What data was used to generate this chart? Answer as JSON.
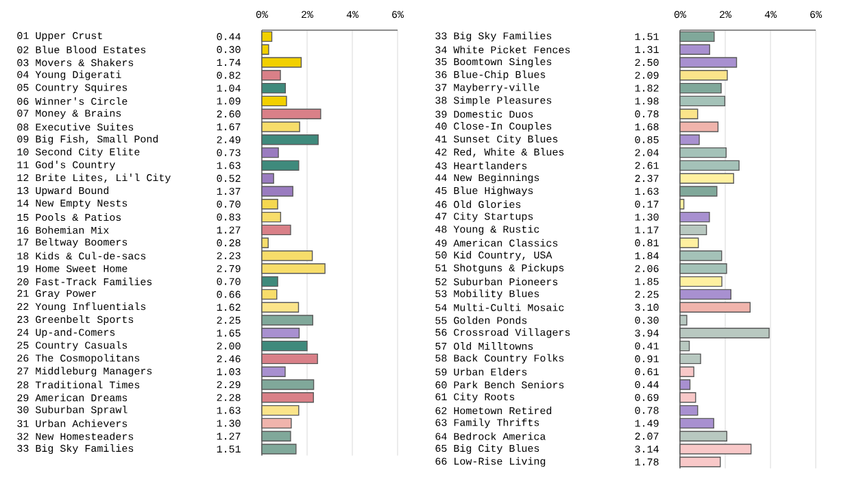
{
  "chart_data": [
    {
      "type": "bar",
      "orientation": "horizontal",
      "grid": "x",
      "categories": [
        "01 Upper Crust",
        "02 Blue Blood Estates",
        "03 Movers & Shakers",
        "04 Young Digerati",
        "05 Country Squires",
        "06 Winner's Circle",
        "07 Money & Brains",
        "08 Executive Suites",
        "09 Big Fish, Small Pond",
        "10 Second City Elite",
        "11 God's Country",
        "12 Brite Lites, Li'l City",
        "13 Upward Bound",
        "14 New Empty Nests",
        "15 Pools & Patios",
        "16 Bohemian Mix",
        "17 Beltway Boomers",
        "18 Kids & Cul-de-sacs",
        "19 Home Sweet Home",
        "20 Fast-Track Families",
        "21 Gray Power",
        "22 Young Influentials",
        "23 Greenbelt Sports",
        "24 Up-and-Comers",
        "25 Country Casuals",
        "26 The Cosmopolitans",
        "27 Middleburg Managers",
        "28 Traditional Times",
        "29 American Dreams",
        "30 Suburban Sprawl",
        "31 Urban Achievers",
        "32 New Homesteaders",
        "33 Big Sky Families"
      ],
      "values": [
        0.44,
        0.3,
        1.74,
        0.82,
        1.04,
        1.09,
        2.6,
        1.67,
        2.49,
        0.73,
        1.63,
        0.52,
        1.37,
        0.7,
        0.83,
        1.27,
        0.28,
        2.23,
        2.79,
        0.7,
        0.66,
        1.62,
        2.25,
        1.65,
        2.0,
        2.46,
        1.03,
        2.29,
        2.28,
        1.63,
        1.3,
        1.27,
        1.51
      ],
      "value_labels": [
        "0.44",
        "0.30",
        "1.74",
        "0.82",
        "1.04",
        "1.09",
        "2.60",
        "1.67",
        "2.49",
        "0.73",
        "1.63",
        "0.52",
        "1.37",
        "0.70",
        "0.83",
        "1.27",
        "0.28",
        "2.23",
        "2.79",
        "0.70",
        "0.66",
        "1.62",
        "2.25",
        "1.65",
        "2.00",
        "2.46",
        "1.03",
        "2.29",
        "2.28",
        "1.63",
        "1.30",
        "1.27",
        "1.51"
      ],
      "colors": [
        "#f2d000",
        "#f2d000",
        "#f2d000",
        "#d98088",
        "#3f8a7c",
        "#f2d000",
        "#d98088",
        "#f7dd6a",
        "#3f8a7c",
        "#9a7cc0",
        "#3f8a7c",
        "#9a7cc0",
        "#9a7cc0",
        "#f5d850",
        "#f7dd6a",
        "#d98088",
        "#f7dd6a",
        "#f7dd6a",
        "#f7dd6a",
        "#3f8a7c",
        "#f7dd6a",
        "#fbe48a",
        "#80a89a",
        "#a890d0",
        "#3f8a7c",
        "#d98088",
        "#a890d0",
        "#80a89a",
        "#d98088",
        "#fbe48a",
        "#f0b4ac",
        "#80a89a",
        "#80a89a"
      ],
      "x2lim": [
        0,
        6
      ],
      "x2ticks": [
        {
          "value": 0,
          "label": "0%"
        },
        {
          "value": 2,
          "label": "2%"
        },
        {
          "value": 4,
          "label": "4%"
        },
        {
          "value": 6,
          "label": "6%"
        }
      ]
    },
    {
      "type": "bar",
      "orientation": "horizontal",
      "grid": "x",
      "categories": [
        "33 Big Sky Families",
        "34 White Picket Fences",
        "35 Boomtown Singles",
        "36 Blue-Chip Blues",
        "37 Mayberry-ville",
        "38 Simple Pleasures",
        "39 Domestic Duos",
        "40 Close-In Couples",
        "41 Sunset City Blues",
        "42 Red, White & Blues",
        "43 Heartlanders",
        "44 New Beginnings",
        "45 Blue Highways",
        "46 Old Glories",
        "47 City Startups",
        "48 Young & Rustic",
        "49 American Classics",
        "50 Kid Country, USA",
        "51 Shotguns & Pickups",
        "52 Suburban Pioneers",
        "53 Mobility Blues",
        "54 Multi-Culti Mosaic",
        "55 Golden Ponds",
        "56 Crossroad Villagers",
        "57 Old Milltowns",
        "58 Back Country Folks",
        "59 Urban Elders",
        "60 Park Bench Seniors",
        "61 City Roots",
        "62 Hometown Retired",
        "63 Family Thrifts",
        "64 Bedrock America",
        "65 Big City Blues",
        "66 Low-Rise Living"
      ],
      "values": [
        1.51,
        1.31,
        2.5,
        2.09,
        1.82,
        1.98,
        0.78,
        1.68,
        0.85,
        2.04,
        2.61,
        2.37,
        1.63,
        0.17,
        1.3,
        1.17,
        0.81,
        1.84,
        2.06,
        1.85,
        2.25,
        3.1,
        0.3,
        3.94,
        0.41,
        0.91,
        0.61,
        0.44,
        0.69,
        0.78,
        1.49,
        2.07,
        3.14,
        1.78
      ],
      "value_labels": [
        "1.51",
        "1.31",
        "2.50",
        "2.09",
        "1.82",
        "1.98",
        "0.78",
        "1.68",
        "0.85",
        "2.04",
        "2.61",
        "2.37",
        "1.63",
        "0.17",
        "1.30",
        "1.17",
        "0.81",
        "1.84",
        "2.06",
        "1.85",
        "2.25",
        "3.10",
        "0.30",
        "3.94",
        "0.41",
        "0.91",
        "0.61",
        "0.44",
        "0.69",
        "0.78",
        "1.49",
        "2.07",
        "3.14",
        "1.78"
      ],
      "colors": [
        "#80a89a",
        "#a890d0",
        "#a890d0",
        "#fbe48a",
        "#80a89a",
        "#a4c2b8",
        "#fbe48a",
        "#f0b4ac",
        "#a890d0",
        "#a4c2b8",
        "#a4c2b8",
        "#fff0a0",
        "#80a89a",
        "#fff0a0",
        "#a890d0",
        "#b8c8c0",
        "#fff0a0",
        "#a4c2b8",
        "#a4c2b8",
        "#fff0a0",
        "#a890d0",
        "#f0b4ac",
        "#b8c8c0",
        "#b8c8c0",
        "#b8c8c0",
        "#b8c8c0",
        "#f8c8c8",
        "#a890d0",
        "#f8c8c8",
        "#a890d0",
        "#a890d0",
        "#b8c8c0",
        "#f8c8c8",
        "#f8c8c8"
      ],
      "x2lim": [
        0,
        6
      ],
      "x2ticks": [
        {
          "value": 0,
          "label": "0%"
        },
        {
          "value": 2,
          "label": "2%"
        },
        {
          "value": 4,
          "label": "4%"
        },
        {
          "value": 6,
          "label": "6%"
        }
      ]
    }
  ]
}
